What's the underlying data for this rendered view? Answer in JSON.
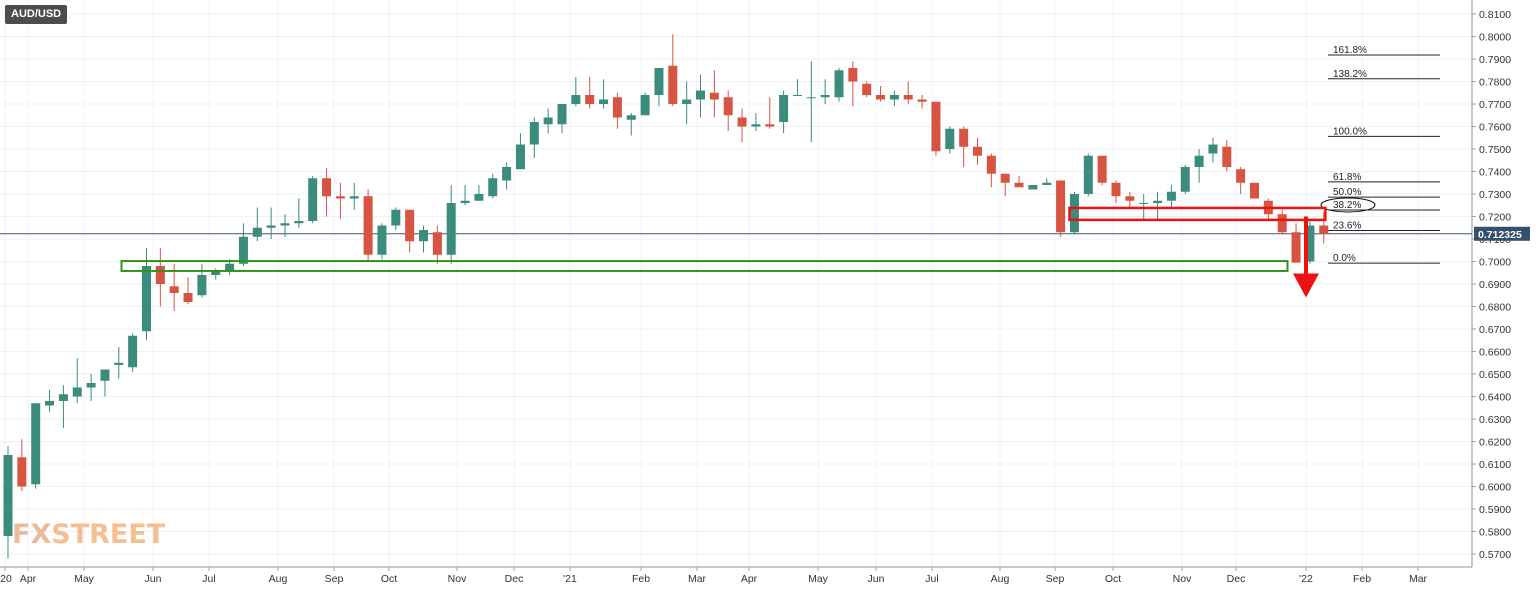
{
  "symbol": "AUD/USD",
  "watermark": {
    "part1": "FX",
    "part2": "STREET"
  },
  "colors": {
    "bull": "#3b8c7c",
    "bear": "#d75442",
    "support_box": "#35911b",
    "resistance_box": "#ee1111",
    "arrow": "#ee1111",
    "current_line": "#3c5773",
    "current_label_bg": "#33506e",
    "fib_line": "#222222",
    "grid": "#eef0f3"
  },
  "chart_data": {
    "type": "candlestick",
    "timeframe": "weekly",
    "ylim": [
      0.565,
      0.815
    ],
    "y_ticks": [
      "0.8100",
      "0.8000",
      "0.7900",
      "0.7800",
      "0.7700",
      "0.7600",
      "0.7500",
      "0.7400",
      "0.7300",
      "0.7200",
      "0.7100",
      "0.7000",
      "0.6900",
      "0.6800",
      "0.6700",
      "0.6600",
      "0.6500",
      "0.6400",
      "0.6300",
      "0.6200",
      "0.6100",
      "0.6000",
      "0.5900",
      "0.5800",
      "0.5700"
    ],
    "x_ticks": [
      "'20",
      "Apr",
      "May",
      "Jun",
      "Jul",
      "Aug",
      "Sep",
      "Oct",
      "Nov",
      "Dec",
      "'21",
      "Feb",
      "Mar",
      "Apr",
      "May",
      "Jun",
      "Jul",
      "Aug",
      "Sep",
      "Oct",
      "Nov",
      "Dec",
      "'22",
      "Feb",
      "Mar"
    ],
    "current_price": {
      "value": 0.712325,
      "label": "0.712325"
    },
    "fibonacci": [
      {
        "label": "161.8%",
        "value": 0.7918
      },
      {
        "label": "138.2%",
        "value": 0.7812
      },
      {
        "label": "100.0%",
        "value": 0.7556
      },
      {
        "label": "61.8%",
        "value": 0.7354
      },
      {
        "label": "50.0%",
        "value": 0.7286
      },
      {
        "label": "38.2%",
        "value": 0.7229,
        "circled": true
      },
      {
        "label": "23.6%",
        "value": 0.7138
      },
      {
        "label": "0.0%",
        "value": 0.6993
      }
    ],
    "support_zone": {
      "from_week": "2020-06-01",
      "to_week": "2021-12-13",
      "low": 0.6958,
      "high": 0.7002
    },
    "resistance_zone": {
      "from_week": "2021-09-13",
      "to_week": "2021-12-20",
      "low": 0.7185,
      "high": 0.7238
    },
    "projection_arrow": {
      "week": "2021-12-27",
      "from": 0.72,
      "to": 0.684,
      "direction": "down"
    },
    "candles": [
      {
        "week": "2020-03-23",
        "o": 0.578,
        "h": 0.618,
        "l": 0.568,
        "c": 0.614
      },
      {
        "week": "2020-03-30",
        "o": 0.613,
        "h": 0.621,
        "l": 0.598,
        "c": 0.6
      },
      {
        "week": "2020-04-06",
        "o": 0.601,
        "h": 0.637,
        "l": 0.599,
        "c": 0.637
      },
      {
        "week": "2020-04-13",
        "o": 0.636,
        "h": 0.643,
        "l": 0.633,
        "c": 0.638
      },
      {
        "week": "2020-04-20",
        "o": 0.638,
        "h": 0.645,
        "l": 0.626,
        "c": 0.641
      },
      {
        "week": "2020-04-27",
        "o": 0.64,
        "h": 0.657,
        "l": 0.637,
        "c": 0.644
      },
      {
        "week": "2020-05-04",
        "o": 0.644,
        "h": 0.65,
        "l": 0.638,
        "c": 0.646
      },
      {
        "week": "2020-05-11",
        "o": 0.647,
        "h": 0.652,
        "l": 0.64,
        "c": 0.652
      },
      {
        "week": "2020-05-18",
        "o": 0.654,
        "h": 0.662,
        "l": 0.648,
        "c": 0.655
      },
      {
        "week": "2020-05-25",
        "o": 0.653,
        "h": 0.668,
        "l": 0.651,
        "c": 0.667
      },
      {
        "week": "2020-06-01",
        "o": 0.669,
        "h": 0.706,
        "l": 0.665,
        "c": 0.698
      },
      {
        "week": "2020-06-08",
        "o": 0.698,
        "h": 0.706,
        "l": 0.68,
        "c": 0.69
      },
      {
        "week": "2020-06-15",
        "o": 0.689,
        "h": 0.699,
        "l": 0.678,
        "c": 0.686
      },
      {
        "week": "2020-06-22",
        "o": 0.686,
        "h": 0.693,
        "l": 0.681,
        "c": 0.682
      },
      {
        "week": "2020-06-29",
        "o": 0.685,
        "h": 0.699,
        "l": 0.684,
        "c": 0.694
      },
      {
        "week": "2020-07-06",
        "o": 0.694,
        "h": 0.697,
        "l": 0.692,
        "c": 0.696
      },
      {
        "week": "2020-07-13",
        "o": 0.696,
        "h": 0.701,
        "l": 0.694,
        "c": 0.699
      },
      {
        "week": "2020-07-20",
        "o": 0.699,
        "h": 0.717,
        "l": 0.698,
        "c": 0.711
      },
      {
        "week": "2020-07-27",
        "o": 0.711,
        "h": 0.724,
        "l": 0.709,
        "c": 0.715
      },
      {
        "week": "2020-08-03",
        "o": 0.715,
        "h": 0.724,
        "l": 0.71,
        "c": 0.716
      },
      {
        "week": "2020-08-10",
        "o": 0.716,
        "h": 0.721,
        "l": 0.711,
        "c": 0.717
      },
      {
        "week": "2020-08-17",
        "o": 0.717,
        "h": 0.728,
        "l": 0.715,
        "c": 0.718
      },
      {
        "week": "2020-08-24",
        "o": 0.718,
        "h": 0.738,
        "l": 0.717,
        "c": 0.737
      },
      {
        "week": "2020-08-31",
        "o": 0.737,
        "h": 0.7415,
        "l": 0.72,
        "c": 0.729
      },
      {
        "week": "2020-09-07",
        "o": 0.729,
        "h": 0.735,
        "l": 0.719,
        "c": 0.728
      },
      {
        "week": "2020-09-14",
        "o": 0.728,
        "h": 0.735,
        "l": 0.723,
        "c": 0.729
      },
      {
        "week": "2020-09-21",
        "o": 0.729,
        "h": 0.732,
        "l": 0.7,
        "c": 0.703
      },
      {
        "week": "2020-09-28",
        "o": 0.703,
        "h": 0.717,
        "l": 0.701,
        "c": 0.716
      },
      {
        "week": "2020-10-05",
        "o": 0.716,
        "h": 0.724,
        "l": 0.714,
        "c": 0.723
      },
      {
        "week": "2020-10-12",
        "o": 0.723,
        "h": 0.722,
        "l": 0.704,
        "c": 0.709
      },
      {
        "week": "2020-10-19",
        "o": 0.709,
        "h": 0.716,
        "l": 0.704,
        "c": 0.714
      },
      {
        "week": "2020-10-26",
        "o": 0.713,
        "h": 0.716,
        "l": 0.699,
        "c": 0.703
      },
      {
        "week": "2020-11-02",
        "o": 0.703,
        "h": 0.734,
        "l": 0.699,
        "c": 0.726
      },
      {
        "week": "2020-11-09",
        "o": 0.726,
        "h": 0.734,
        "l": 0.725,
        "c": 0.727
      },
      {
        "week": "2020-11-16",
        "o": 0.727,
        "h": 0.734,
        "l": 0.727,
        "c": 0.73
      },
      {
        "week": "2020-11-23",
        "o": 0.729,
        "h": 0.739,
        "l": 0.728,
        "c": 0.737
      },
      {
        "week": "2020-11-30",
        "o": 0.736,
        "h": 0.744,
        "l": 0.732,
        "c": 0.742
      },
      {
        "week": "2020-12-07",
        "o": 0.741,
        "h": 0.757,
        "l": 0.741,
        "c": 0.752
      },
      {
        "week": "2020-12-14",
        "o": 0.752,
        "h": 0.764,
        "l": 0.746,
        "c": 0.762
      },
      {
        "week": "2020-12-21",
        "o": 0.761,
        "h": 0.768,
        "l": 0.757,
        "c": 0.764
      },
      {
        "week": "2020-12-28",
        "o": 0.761,
        "h": 0.77,
        "l": 0.757,
        "c": 0.77
      },
      {
        "week": "2021-01-04",
        "o": 0.77,
        "h": 0.782,
        "l": 0.769,
        "c": 0.774
      },
      {
        "week": "2021-01-11",
        "o": 0.774,
        "h": 0.782,
        "l": 0.768,
        "c": 0.77
      },
      {
        "week": "2021-01-18",
        "o": 0.77,
        "h": 0.781,
        "l": 0.768,
        "c": 0.772
      },
      {
        "week": "2021-01-25",
        "o": 0.773,
        "h": 0.775,
        "l": 0.759,
        "c": 0.764
      },
      {
        "week": "2021-02-01",
        "o": 0.763,
        "h": 0.766,
        "l": 0.756,
        "c": 0.765
      },
      {
        "week": "2021-02-08",
        "o": 0.765,
        "h": 0.775,
        "l": 0.765,
        "c": 0.774
      },
      {
        "week": "2021-02-15",
        "o": 0.774,
        "h": 0.786,
        "l": 0.769,
        "c": 0.786
      },
      {
        "week": "2021-02-22",
        "o": 0.787,
        "h": 0.801,
        "l": 0.769,
        "c": 0.77
      },
      {
        "week": "2021-03-01",
        "o": 0.77,
        "h": 0.78,
        "l": 0.761,
        "c": 0.772
      },
      {
        "week": "2021-03-08",
        "o": 0.772,
        "h": 0.783,
        "l": 0.764,
        "c": 0.776
      },
      {
        "week": "2021-03-15",
        "o": 0.775,
        "h": 0.785,
        "l": 0.764,
        "c": 0.772
      },
      {
        "week": "2021-03-22",
        "o": 0.773,
        "h": 0.776,
        "l": 0.758,
        "c": 0.765
      },
      {
        "week": "2021-03-29",
        "o": 0.764,
        "h": 0.768,
        "l": 0.753,
        "c": 0.76
      },
      {
        "week": "2021-04-05",
        "o": 0.76,
        "h": 0.766,
        "l": 0.758,
        "c": 0.761
      },
      {
        "week": "2021-04-12",
        "o": 0.761,
        "h": 0.773,
        "l": 0.759,
        "c": 0.76
      },
      {
        "week": "2021-04-19",
        "o": 0.762,
        "h": 0.776,
        "l": 0.757,
        "c": 0.774
      },
      {
        "week": "2021-04-26",
        "o": 0.774,
        "h": 0.781,
        "l": 0.774,
        "c": 0.774
      },
      {
        "week": "2021-05-03",
        "o": 0.773,
        "h": 0.789,
        "l": 0.753,
        "c": 0.773
      },
      {
        "week": "2021-05-10",
        "o": 0.773,
        "h": 0.781,
        "l": 0.77,
        "c": 0.774
      },
      {
        "week": "2021-05-17",
        "o": 0.773,
        "h": 0.786,
        "l": 0.771,
        "c": 0.785
      },
      {
        "week": "2021-05-24",
        "o": 0.786,
        "h": 0.789,
        "l": 0.769,
        "c": 0.78
      },
      {
        "week": "2021-05-31",
        "o": 0.779,
        "h": 0.78,
        "l": 0.773,
        "c": 0.774
      },
      {
        "week": "2021-06-07",
        "o": 0.774,
        "h": 0.778,
        "l": 0.771,
        "c": 0.772
      },
      {
        "week": "2021-06-14",
        "o": 0.772,
        "h": 0.776,
        "l": 0.769,
        "c": 0.774
      },
      {
        "week": "2021-06-21",
        "o": 0.774,
        "h": 0.78,
        "l": 0.77,
        "c": 0.772
      },
      {
        "week": "2021-06-28",
        "o": 0.772,
        "h": 0.774,
        "l": 0.768,
        "c": 0.771
      },
      {
        "week": "2021-07-05",
        "o": 0.771,
        "h": 0.769,
        "l": 0.747,
        "c": 0.749
      },
      {
        "week": "2021-07-12",
        "o": 0.75,
        "h": 0.76,
        "l": 0.748,
        "c": 0.759
      },
      {
        "week": "2021-07-19",
        "o": 0.759,
        "h": 0.76,
        "l": 0.742,
        "c": 0.751
      },
      {
        "week": "2021-07-26",
        "o": 0.751,
        "h": 0.755,
        "l": 0.743,
        "c": 0.747
      },
      {
        "week": "2021-08-02",
        "o": 0.747,
        "h": 0.748,
        "l": 0.733,
        "c": 0.739
      },
      {
        "week": "2021-08-09",
        "o": 0.739,
        "h": 0.739,
        "l": 0.729,
        "c": 0.735
      },
      {
        "week": "2021-08-16",
        "o": 0.735,
        "h": 0.738,
        "l": 0.734,
        "c": 0.733
      },
      {
        "week": "2021-08-23",
        "o": 0.732,
        "h": 0.734,
        "l": 0.733,
        "c": 0.734
      },
      {
        "week": "2021-08-30",
        "o": 0.734,
        "h": 0.737,
        "l": 0.734,
        "c": 0.735
      },
      {
        "week": "2021-09-06",
        "o": 0.736,
        "h": 0.736,
        "l": 0.711,
        "c": 0.713
      },
      {
        "week": "2021-09-13",
        "o": 0.713,
        "h": 0.731,
        "l": 0.712,
        "c": 0.73
      },
      {
        "week": "2021-09-20",
        "o": 0.73,
        "h": 0.748,
        "l": 0.729,
        "c": 0.747
      },
      {
        "week": "2021-09-27",
        "o": 0.747,
        "h": 0.747,
        "l": 0.734,
        "c": 0.735
      },
      {
        "week": "2021-10-04",
        "o": 0.735,
        "h": 0.736,
        "l": 0.726,
        "c": 0.729
      },
      {
        "week": "2021-10-11",
        "o": 0.729,
        "h": 0.731,
        "l": 0.724,
        "c": 0.727
      },
      {
        "week": "2021-10-18",
        "o": 0.726,
        "h": 0.73,
        "l": 0.719,
        "c": 0.726
      },
      {
        "week": "2021-10-25",
        "o": 0.726,
        "h": 0.731,
        "l": 0.718,
        "c": 0.727
      },
      {
        "week": "2021-11-01",
        "o": 0.727,
        "h": 0.734,
        "l": 0.724,
        "c": 0.731
      },
      {
        "week": "2021-11-08",
        "o": 0.731,
        "h": 0.743,
        "l": 0.73,
        "c": 0.742
      },
      {
        "week": "2021-11-15",
        "o": 0.742,
        "h": 0.75,
        "l": 0.735,
        "c": 0.747
      },
      {
        "week": "2021-11-22",
        "o": 0.748,
        "h": 0.755,
        "l": 0.744,
        "c": 0.752
      },
      {
        "week": "2021-11-29",
        "o": 0.751,
        "h": 0.754,
        "l": 0.74,
        "c": 0.742
      },
      {
        "week": "2021-12-06",
        "o": 0.741,
        "h": 0.742,
        "l": 0.73,
        "c": 0.735
      },
      {
        "week": "2021-12-13",
        "o": 0.735,
        "h": 0.733,
        "l": 0.728,
        "c": 0.728
      },
      {
        "week": "2021-12-20",
        "o": 0.727,
        "h": 0.728,
        "l": 0.718,
        "c": 0.721
      },
      {
        "week": "2021-12-27",
        "o": 0.721,
        "h": 0.723,
        "l": 0.712,
        "c": 0.713
      },
      {
        "week": "2022-01-03",
        "o": 0.713,
        "h": 0.717,
        "l": 0.7,
        "c": 0.6995
      },
      {
        "week": "2022-01-10",
        "o": 0.7,
        "h": 0.718,
        "l": 0.699,
        "c": 0.716
      },
      {
        "week": "2022-01-17",
        "o": 0.716,
        "h": 0.722,
        "l": 0.708,
        "c": 0.7123
      }
    ]
  }
}
